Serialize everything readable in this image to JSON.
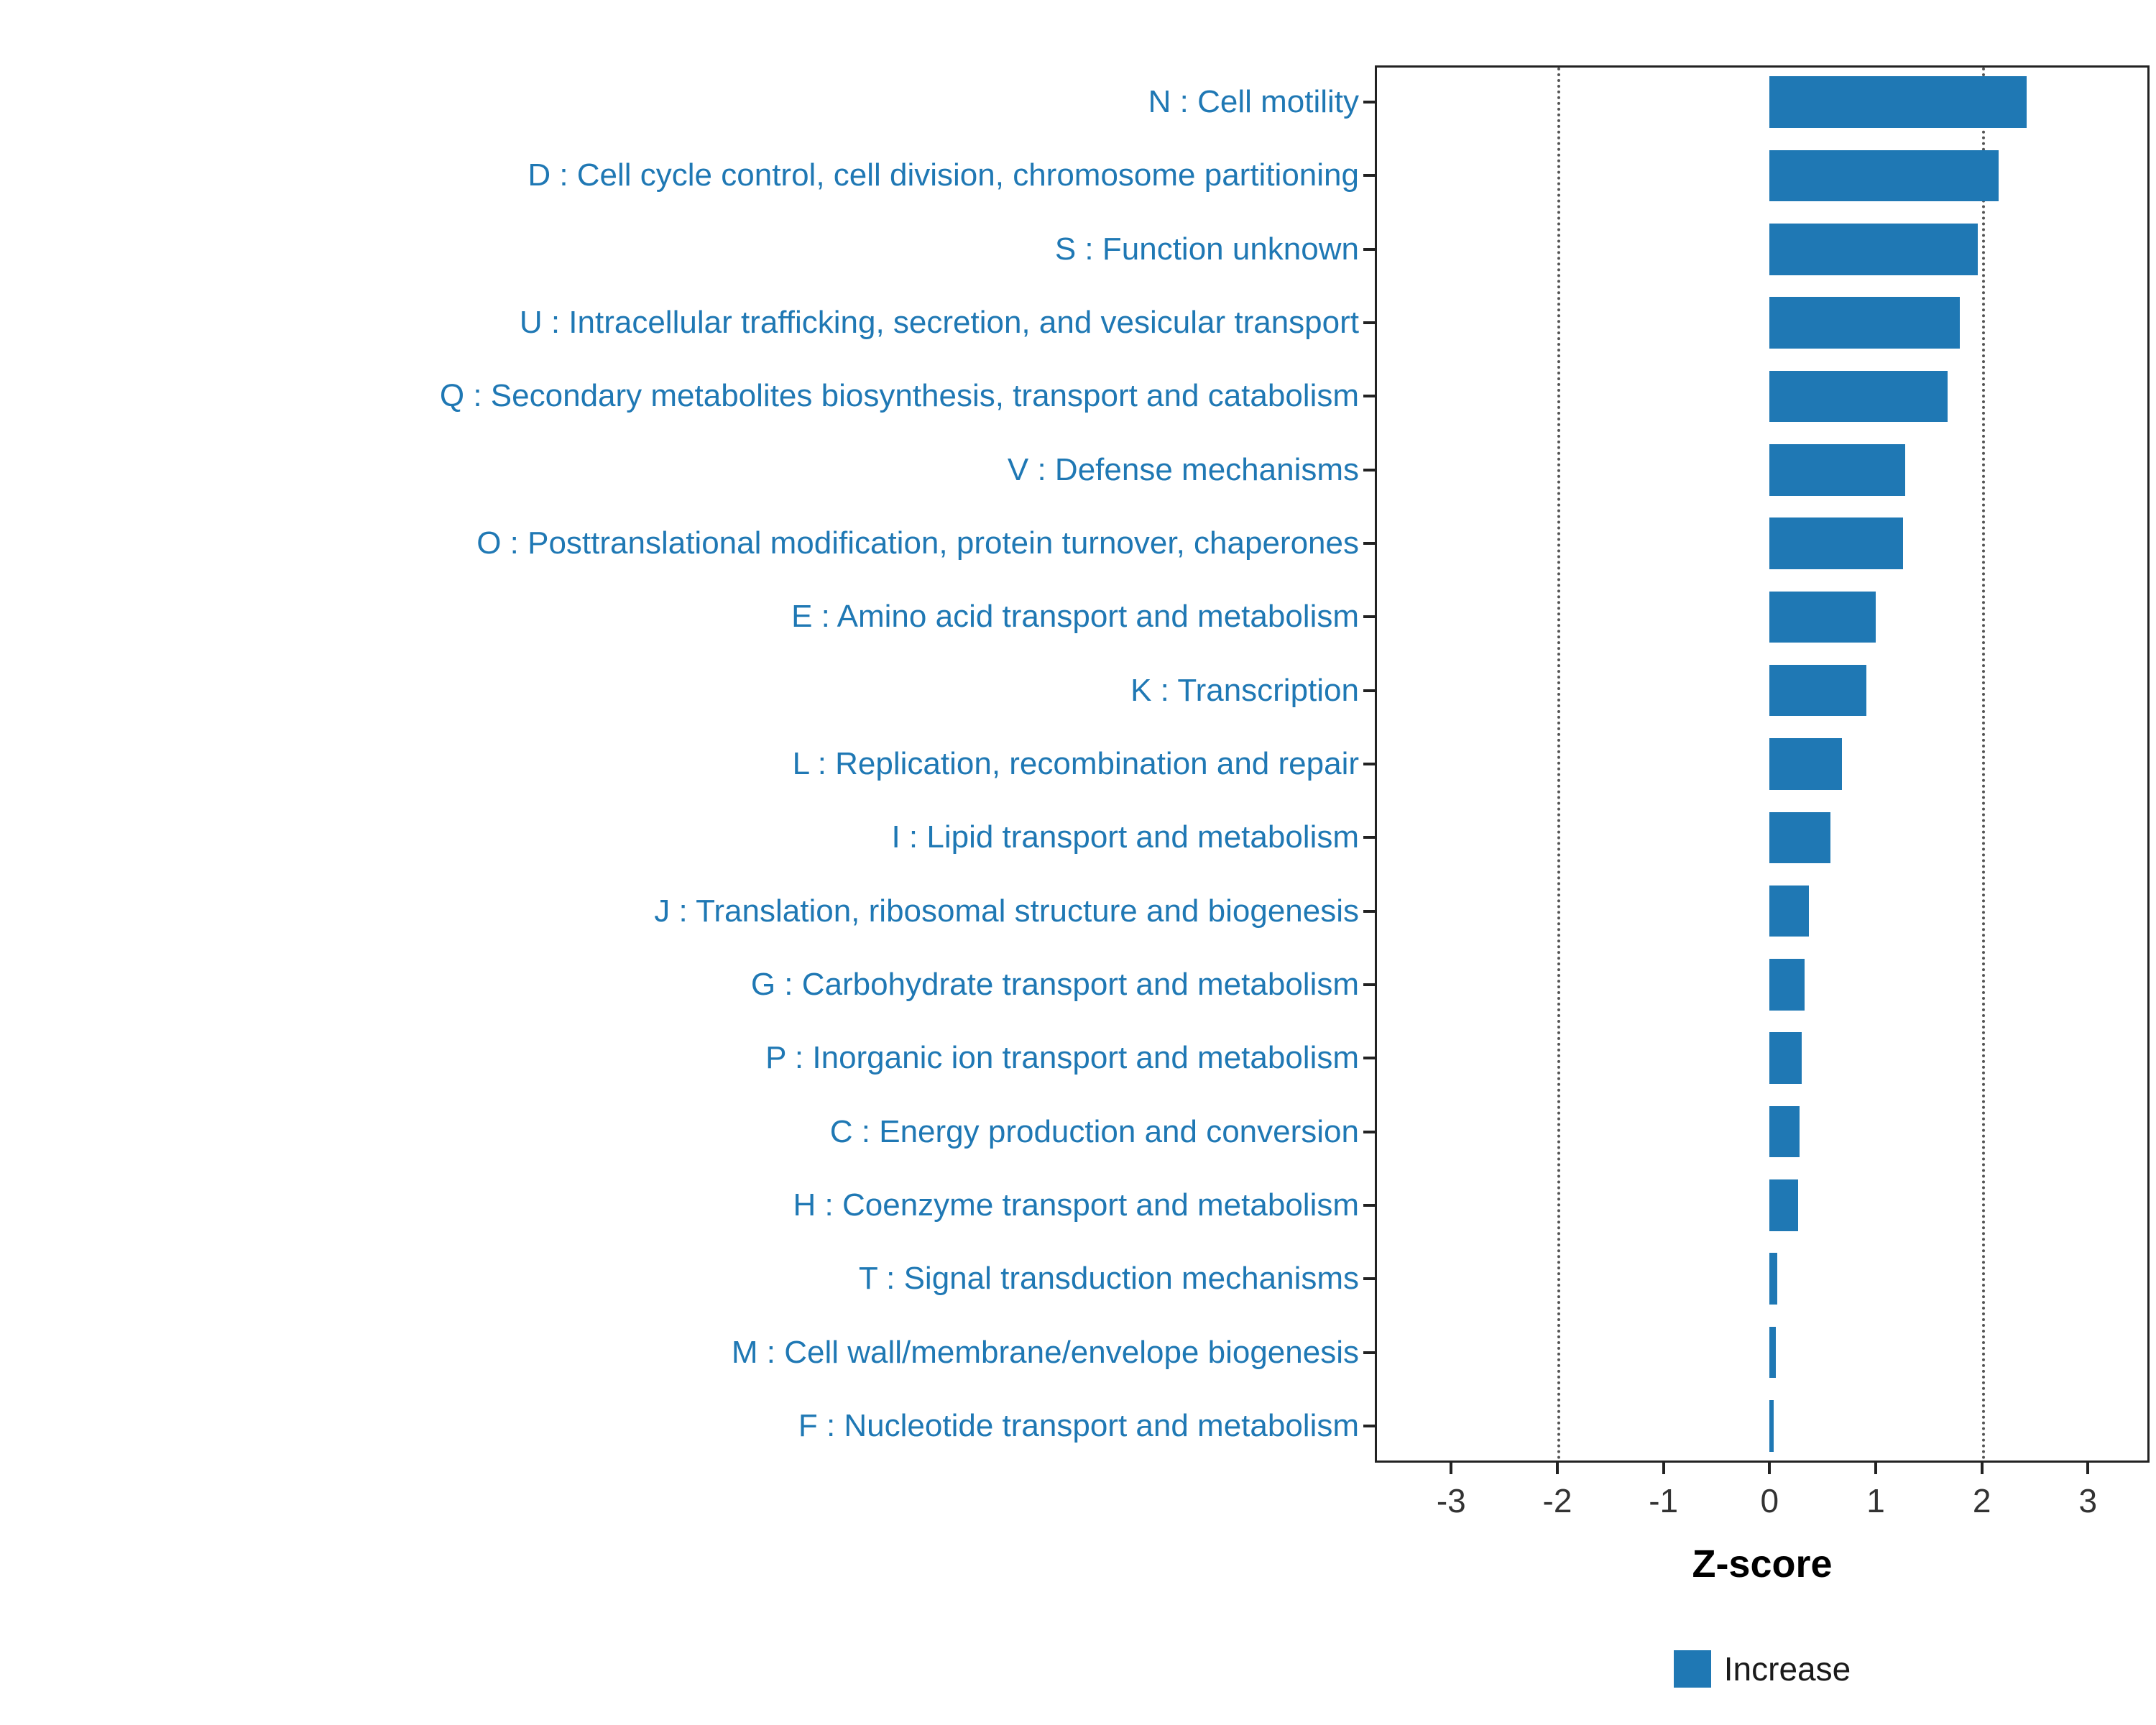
{
  "chart_data": {
    "type": "bar",
    "orientation": "horizontal",
    "title": "",
    "xlabel": "Z-score",
    "ylabel": "",
    "xlim": [
      -3.72,
      3.58
    ],
    "xticks": [
      -3,
      -2,
      -1,
      0,
      1,
      2,
      3
    ],
    "vlines": [
      -2,
      2
    ],
    "grid": "off",
    "bar_color": "#1f78b4",
    "label_color": "#1f78b4",
    "categories": [
      "N : Cell motility",
      "D : Cell cycle control, cell division, chromosome partitioning",
      "S : Function unknown",
      "U : Intracellular trafficking, secretion, and vesicular transport",
      "Q : Secondary metabolites biosynthesis, transport and catabolism",
      "V : Defense mechanisms",
      "O : Posttranslational modification, protein turnover, chaperones",
      "E : Amino acid transport and metabolism",
      "K : Transcription",
      "L : Replication, recombination and repair",
      "I : Lipid transport and metabolism",
      "J : Translation, ribosomal structure and biogenesis",
      "G : Carbohydrate transport and metabolism",
      "P : Inorganic ion transport and metabolism",
      "C : Energy production and conversion",
      "H : Coenzyme transport and metabolism",
      "T : Signal transduction mechanisms",
      "M : Cell wall/membrane/envelope biogenesis",
      "F : Nucleotide transport and metabolism"
    ],
    "values": [
      2.42,
      2.16,
      1.96,
      1.79,
      1.68,
      1.28,
      1.26,
      1.0,
      0.91,
      0.68,
      0.57,
      0.37,
      0.33,
      0.3,
      0.28,
      0.27,
      0.07,
      0.06,
      0.04
    ],
    "legend": [
      {
        "label": "Increase",
        "color": "#1f78b4"
      }
    ],
    "legend_position": "bottom"
  }
}
